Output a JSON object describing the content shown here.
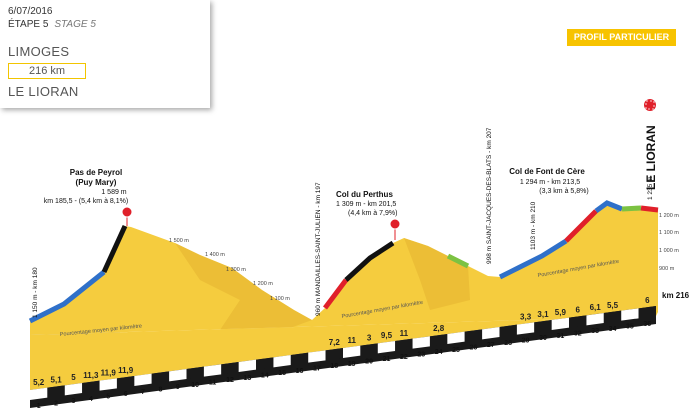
{
  "stage": {
    "date": "6/07/2016",
    "etape_fr": "ÉTAPE 5",
    "etape_en": "STAGE 5",
    "start_city": "LIMOGES",
    "distance": "216 km",
    "finish_city": "LE LIORAN"
  },
  "badge": "PROFIL PARTICULIER",
  "climbs": [
    {
      "name": "Pas de Peyrol",
      "name2": "(Puy Mary)",
      "alt": "1 589 m",
      "detail": "km 185,5 - (5,4 km à 8,1%)"
    },
    {
      "name": "Col du Perthus",
      "alt": "1 309 m - km 201,5",
      "detail": "(4,4 km à 7,9%)"
    },
    {
      "name": "Col de Font de Cère",
      "alt": "1 294 m - km 213,5",
      "detail": "(3,3 km à 5,8%)"
    }
  ],
  "finish_label": "LE LIORAN",
  "vertical_labels": {
    "start": "1 150 m - km 180",
    "mandailles": "960 m  MANDAILLES-SAINT-JULIEN - km 197",
    "stjacques": "998 m  SAINT-JACQUES-DES-BLATS - km 207",
    "km210": "1103 m - km 210",
    "finish": "1 235 m"
  },
  "alt_marks_left": [
    "1 500 m",
    "1 400 m",
    "1 300 m",
    "1 200 m",
    "1 100 m"
  ],
  "alt_marks_right": [
    "1 200 m",
    "1 100 m",
    "1 000 m",
    "900 m"
  ],
  "km_end_label": "km 216",
  "km_ticks": [
    "1",
    "2",
    "3",
    "4",
    "5",
    "6",
    "7",
    "8",
    "9",
    "10",
    "11",
    "12",
    "13",
    "14",
    "15",
    "16",
    "17",
    "18",
    "19",
    "20",
    "21",
    "22",
    "23",
    "24",
    "25",
    "26",
    "27",
    "28",
    "29",
    "30",
    "31",
    "32",
    "33",
    "34",
    "35",
    "36"
  ],
  "gradients": [
    {
      "label": "5,2",
      "km": 1
    },
    {
      "label": "5,1",
      "km": 2
    },
    {
      "label": "5",
      "km": 3
    },
    {
      "label": "11,3",
      "km": 4
    },
    {
      "label": "11,9",
      "km": 5
    },
    {
      "label": "11,9",
      "km": 6
    },
    {
      "label": "7,2",
      "km": 18
    },
    {
      "label": "11",
      "km": 19
    },
    {
      "label": "3",
      "km": 20
    },
    {
      "label": "9,5",
      "km": 21
    },
    {
      "label": "11",
      "km": 22
    },
    {
      "label": "2,8",
      "km": 24
    },
    {
      "label": "3,3",
      "km": 29
    },
    {
      "label": "3,1",
      "km": 30
    },
    {
      "label": "5,9",
      "km": 31
    },
    {
      "label": "6",
      "km": 32
    },
    {
      "label": "6,1",
      "km": 33
    },
    {
      "label": "5,5",
      "km": 34
    },
    {
      "label": "6",
      "km": 36
    }
  ],
  "avg_gradient_text": "Pourcentage moyen par kilomètre",
  "colors": {
    "terrain": "#f5cc3e",
    "terrain_shadow": "#a89a63",
    "road_black": "#111111",
    "road_blue": "#2f70c9",
    "road_red": "#e0202a",
    "road_green": "#7cc242",
    "badge": "#f7c300",
    "summit_marker": "#e0202a"
  },
  "icons": [
    "summit-marker-icon",
    "finish-flag-icon"
  ]
}
